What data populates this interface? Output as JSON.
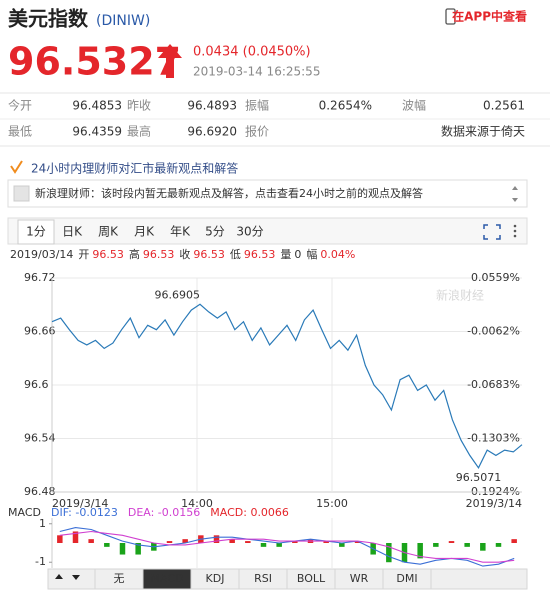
{
  "header": {
    "title": "美元指数",
    "code": "(DINIW)",
    "app_link": "在APP中查看"
  },
  "quote": {
    "price": "96.5327",
    "change": "0.0434 (0.0450%)",
    "time": "2019-03-14 16:25:55"
  },
  "stats": {
    "rows": [
      [
        "今开",
        "96.4853",
        "昨收",
        "96.4893",
        "振幅",
        "0.2654%",
        "波幅",
        "0.2561"
      ],
      [
        "最低",
        "96.4359",
        "最高",
        "96.6920",
        "报价",
        "数据来源于倚天"
      ]
    ]
  },
  "advisor": {
    "heading": "24小时内理财师对汇市最新观点和解答",
    "message": "新浪理财师：该时段内暂无最新观点及解答，点击查看24小时之前的观点及解答"
  },
  "chart_tabs": {
    "items": [
      "1分",
      "日K",
      "周K",
      "月K",
      "年K",
      "5分",
      "30分"
    ],
    "selected": 0
  },
  "info_bar": {
    "date": "2019/03/14",
    "items": [
      {
        "label": "开",
        "value": "96.53",
        "color": "#e4262b"
      },
      {
        "label": "高",
        "value": "96.53",
        "color": "#e4262b"
      },
      {
        "label": "收",
        "value": "96.53",
        "color": "#e4262b"
      },
      {
        "label": "低",
        "value": "96.53",
        "color": "#e4262b"
      },
      {
        "label": "量",
        "value": "0",
        "color": "#333333"
      },
      {
        "label": "幅",
        "value": "0.04%",
        "color": "#e4262b"
      }
    ]
  },
  "intraday": {
    "watermark": "新浪财经",
    "ylim": [
      96.48,
      96.72
    ],
    "yticks": [
      96.72,
      96.66,
      96.6,
      96.54,
      96.48
    ],
    "pct_ticks": [
      {
        "value": 0.0559,
        "label": "0.0559%"
      },
      {
        "value": -0.0062,
        "label": "-0.0062%"
      },
      {
        "value": -0.0683,
        "label": "-0.0683%"
      },
      {
        "value": -0.1303,
        "label": "-0.1303%"
      },
      {
        "value": -0.1924,
        "label": "-0.1924%"
      }
    ],
    "up_color": "#e4262b",
    "down_color": "#1aa31a",
    "xtick_labels": [
      "2019/3/14",
      "14:00",
      "15:00",
      "2019/3/14"
    ],
    "max_label": "96.6905",
    "min_label": "96.5071",
    "color": "#2a7ab8",
    "values": [
      96.671,
      96.675,
      96.662,
      96.65,
      96.645,
      96.65,
      96.641,
      96.647,
      96.662,
      96.675,
      96.653,
      96.667,
      96.662,
      96.673,
      96.656,
      96.671,
      96.684,
      96.6905,
      96.682,
      96.675,
      96.682,
      96.662,
      96.671,
      96.65,
      96.664,
      96.645,
      96.656,
      96.667,
      96.65,
      96.673,
      96.684,
      96.662,
      96.641,
      96.65,
      96.639,
      96.656,
      96.622,
      96.6,
      96.589,
      96.572,
      96.606,
      96.611,
      96.594,
      96.6,
      96.583,
      96.594,
      96.561,
      96.538,
      96.521,
      96.5071,
      96.527,
      96.521,
      96.527,
      96.525,
      96.533
    ]
  },
  "macd": {
    "title": "MACD",
    "ylim": [
      -1.3,
      1.3
    ],
    "yticks": [
      1,
      -1
    ],
    "series": [
      {
        "name": "DIF",
        "label": "DIF: -0.0123",
        "color": "#3b6fd6",
        "values": [
          0.6,
          0.8,
          0.7,
          0.4,
          0.1,
          -0.1,
          -0.2,
          -0.1,
          0.0,
          0.2,
          0.3,
          0.3,
          0.2,
          0.1,
          0.0,
          0.1,
          0.2,
          0.1,
          0.0,
          0.1,
          -0.3,
          -0.7,
          -1.0,
          -1.1,
          -0.9,
          -0.8,
          -0.9,
          -1.2,
          -1.1,
          -0.8
        ]
      },
      {
        "name": "DEA",
        "label": "DEA: -0.0156",
        "color": "#d040d0",
        "values": [
          0.4,
          0.5,
          0.6,
          0.5,
          0.4,
          0.2,
          0.0,
          -0.1,
          -0.1,
          0.0,
          0.1,
          0.2,
          0.2,
          0.2,
          0.1,
          0.1,
          0.1,
          0.1,
          0.1,
          0.1,
          0.0,
          -0.2,
          -0.5,
          -0.7,
          -0.8,
          -0.8,
          -0.8,
          -1.0,
          -1.0,
          -0.9
        ]
      }
    ],
    "histogram": {
      "label": "MACD: 0.0066",
      "up_color": "#e4262b",
      "down_color": "#1aa31a",
      "values": [
        0.4,
        0.6,
        0.2,
        -0.2,
        -0.6,
        -0.6,
        -0.4,
        0.1,
        0.2,
        0.4,
        0.4,
        0.2,
        0.1,
        -0.2,
        -0.2,
        0.1,
        0.2,
        0.1,
        -0.2,
        0.1,
        -0.6,
        -1.0,
        -1.0,
        -0.8,
        -0.2,
        0.1,
        -0.2,
        -0.4,
        -0.2,
        0.2
      ]
    }
  },
  "indicator_tabs": {
    "items": [
      "无",
      "MACD",
      "KDJ",
      "RSI",
      "BOLL",
      "WR",
      "DMI"
    ],
    "selected": 1
  }
}
